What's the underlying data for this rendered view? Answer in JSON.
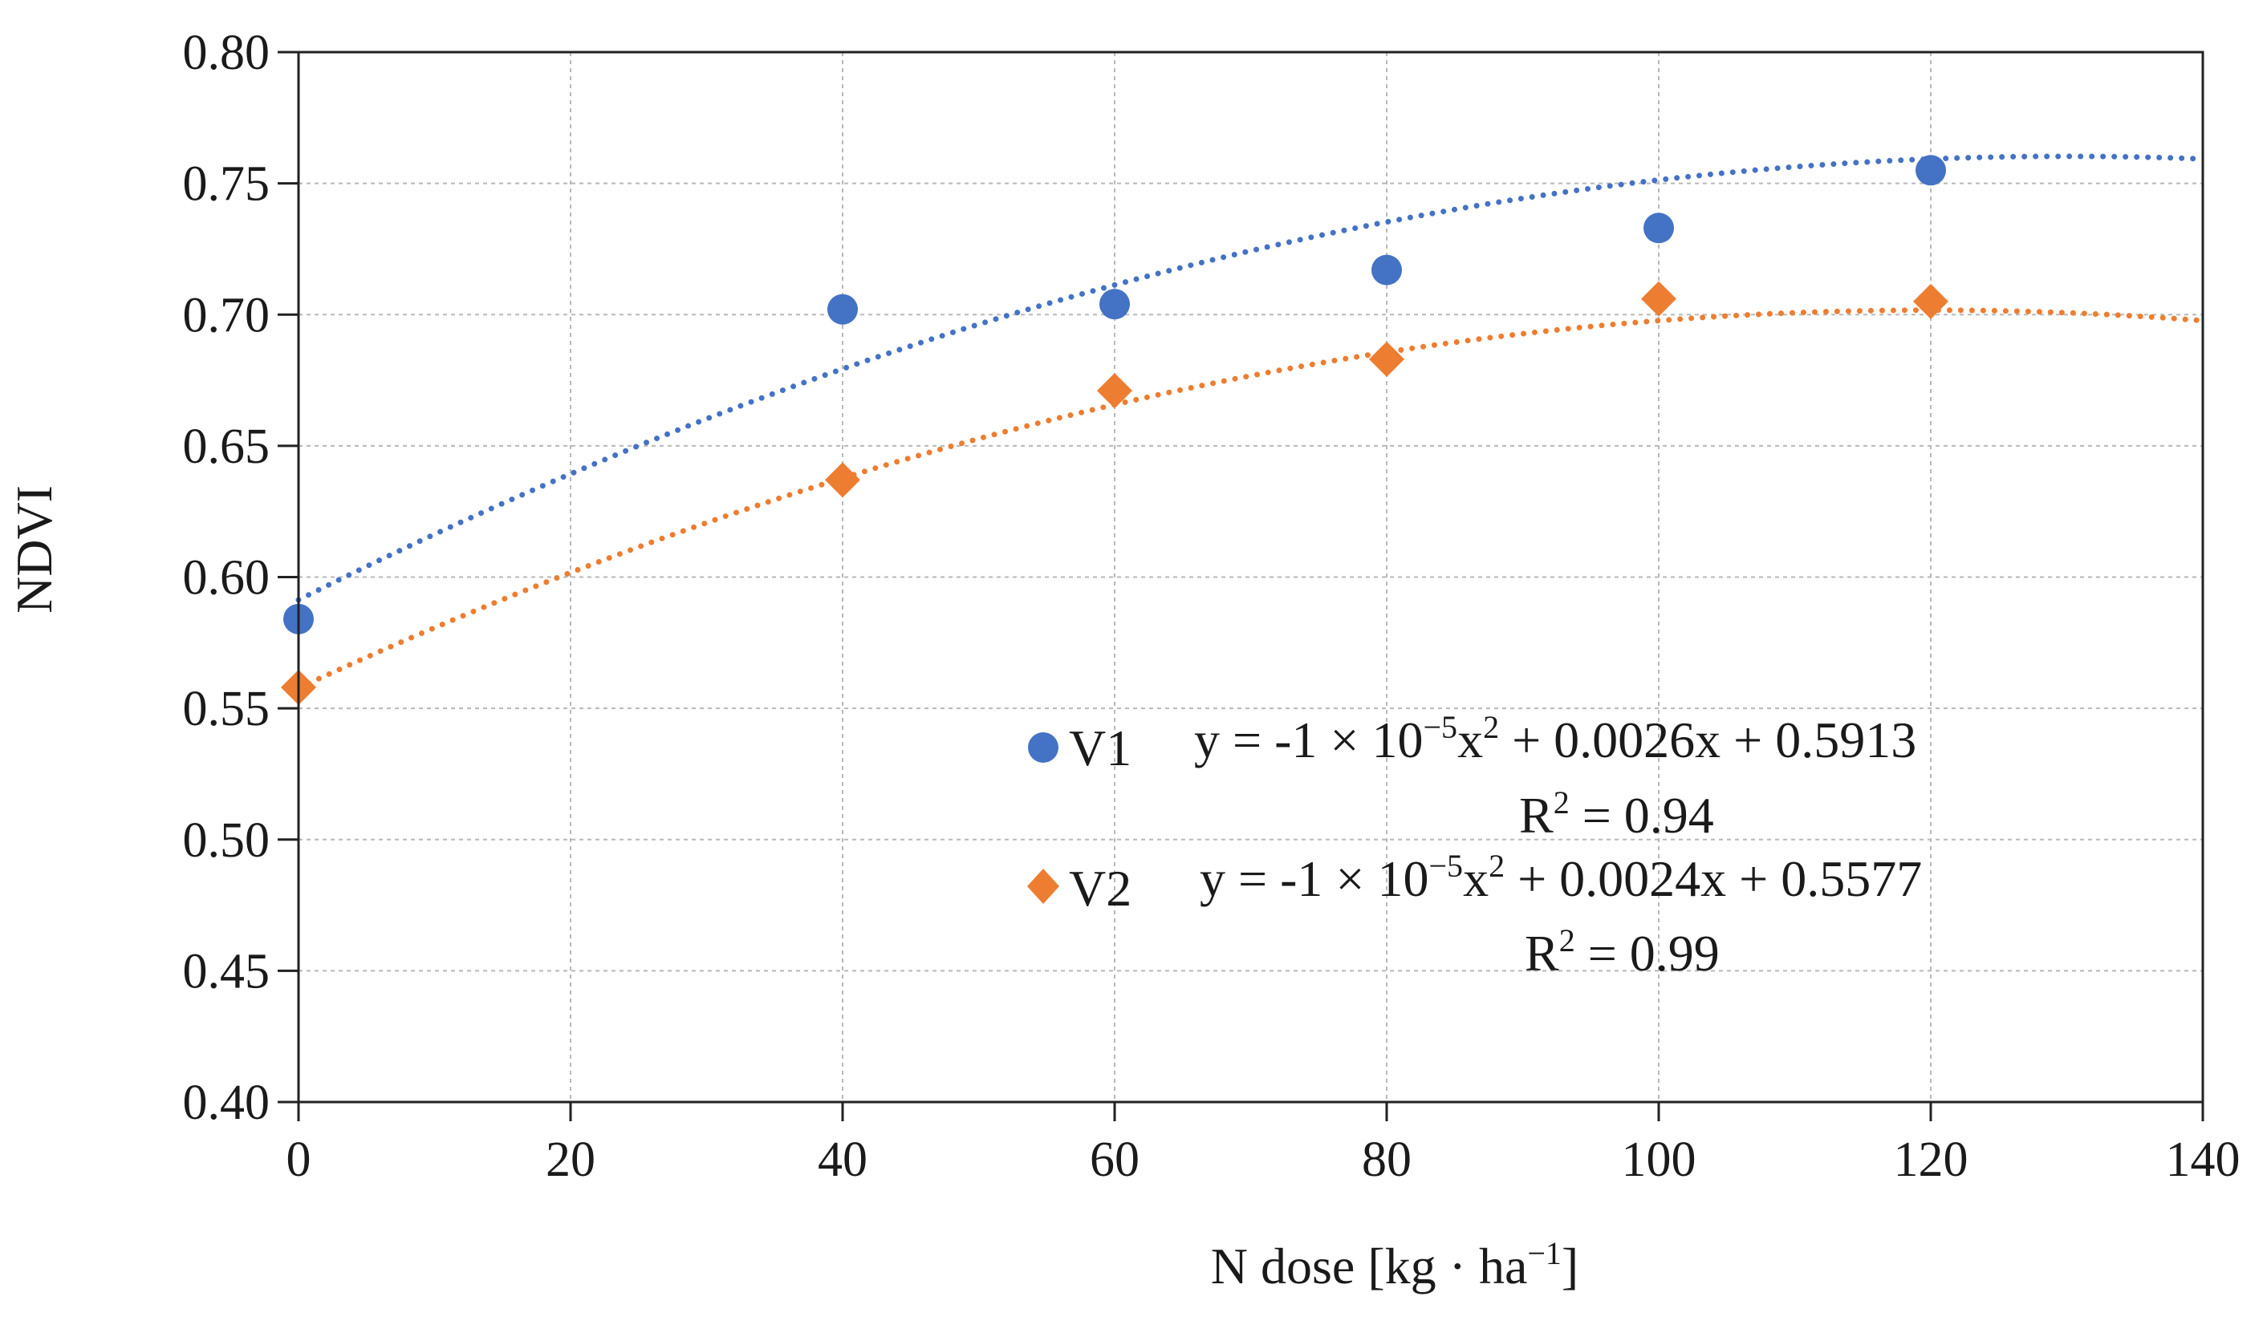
{
  "chart_data": {
    "type": "scatter",
    "title": "",
    "xlabel": "N dose [kg · ha",
    "xlabel_sup": "−1",
    "xlabel_end": "]",
    "ylabel": "NDVI",
    "xlim": [
      0,
      140
    ],
    "ylim": [
      0.4,
      0.8
    ],
    "x_ticks": [
      0,
      20,
      40,
      60,
      80,
      100,
      120,
      140
    ],
    "x_tick_labels": [
      "0",
      "20",
      "40",
      "60",
      "80",
      "100",
      "120",
      "140"
    ],
    "y_ticks": [
      0.4,
      0.45,
      0.5,
      0.55,
      0.6,
      0.65,
      0.7,
      0.75,
      0.8
    ],
    "y_tick_labels": [
      "0.40",
      "0.45",
      "0.50",
      "0.55",
      "0.60",
      "0.65",
      "0.70",
      "0.75",
      "0.80"
    ],
    "grid": true,
    "legend_position": "bottom-right",
    "series": [
      {
        "name": "V1",
        "marker": "circle",
        "color": "#4472C4",
        "x": [
          0,
          40,
          60,
          80,
          100,
          120
        ],
        "y": [
          0.584,
          0.702,
          0.704,
          0.717,
          0.733,
          0.755
        ],
        "trendline": {
          "type": "polynomial-2",
          "a": -1e-05,
          "b": 0.0026,
          "c": 0.5913,
          "r2": 0.94
        },
        "equation": {
          "p1": "y = -1 × 10",
          "sup1": "−5",
          "p2": "x",
          "sup2": "2",
          "p3": " + 0.0026x + 0.5913"
        },
        "r2_label": {
          "p1": "R",
          "sup": "2",
          "p2": " = 0.94"
        }
      },
      {
        "name": "V2",
        "marker": "diamond",
        "color": "#ED7D31",
        "x": [
          0,
          40,
          60,
          80,
          100,
          120
        ],
        "y": [
          0.558,
          0.637,
          0.671,
          0.683,
          0.706,
          0.705
        ],
        "trendline": {
          "type": "polynomial-2",
          "a": -1e-05,
          "b": 0.0024,
          "c": 0.5577,
          "r2": 0.99
        },
        "equation": {
          "p1": "y = -1 × 10",
          "sup1": "−5",
          "p2": "x",
          "sup2": "2",
          "p3": " + 0.0024x + 0.5577"
        },
        "r2_label": {
          "p1": "R",
          "sup": "2",
          "p2": " = 0.99"
        }
      }
    ]
  }
}
